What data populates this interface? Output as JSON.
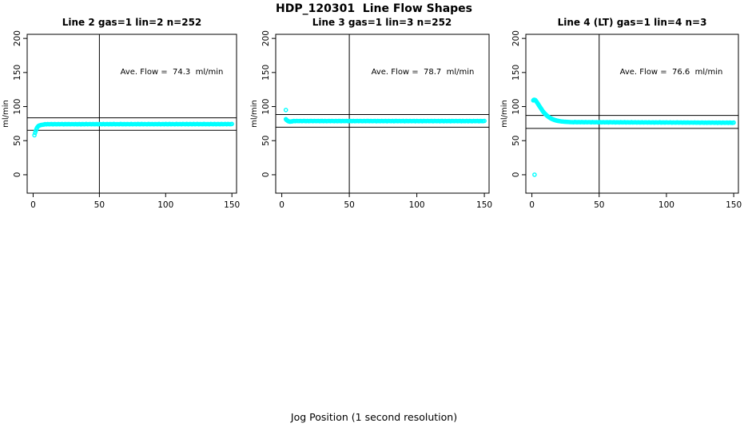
{
  "title": "HDP_120301  Line Flow Shapes",
  "xlabel": "Jog Position (1 second resolution)",
  "colors": {
    "points": "#00FFFF",
    "axis": "#000000",
    "background": "#FFFFFF"
  },
  "axes": {
    "xticks": [
      0,
      50,
      100,
      150
    ],
    "yticks": [
      0,
      50,
      100,
      150,
      200
    ],
    "ylabel": "ml/min",
    "xlim": [
      -4.5,
      153.5
    ],
    "ylim": [
      -27,
      206
    ],
    "grid": false
  },
  "chart_data": [
    {
      "type": "scatter",
      "title": "Line 2 gas=1 lin=2 n=252",
      "annotation": "Ave. Flow =  74.3  ml/min",
      "ave_flow_ml_min": 74.3,
      "n": 252,
      "reference": {
        "vline_x": 50,
        "hlines": [
          65.2,
          83.5
        ]
      },
      "series": {
        "transient": [
          [
            1,
            58
          ],
          [
            1.5,
            61.5
          ],
          [
            2,
            64.5
          ],
          [
            2.5,
            67
          ],
          [
            3,
            69
          ],
          [
            3.5,
            70.5
          ],
          [
            4,
            71.5
          ],
          [
            4.5,
            72.1
          ],
          [
            5,
            72.5
          ],
          [
            6,
            73.0
          ],
          [
            7,
            73.3
          ],
          [
            8,
            73.6
          ]
        ],
        "steady": {
          "x_from": 9,
          "x_to": 150,
          "x_step": 1,
          "y_start": 74.2,
          "y_end": 74.3,
          "y_wobble": 0.4
        },
        "outliers": []
      }
    },
    {
      "type": "scatter",
      "title": "Line 3 gas=1 lin=3 n=252",
      "annotation": "Ave. Flow =  78.7  ml/min",
      "ave_flow_ml_min": 78.7,
      "n": 252,
      "reference": {
        "vline_x": 50,
        "hlines": [
          69.7,
          88.3
        ]
      },
      "series": {
        "transient": [
          [
            3,
            81.5
          ],
          [
            3.5,
            80.4
          ],
          [
            4,
            79.6
          ],
          [
            4.5,
            79.0
          ],
          [
            5,
            78.4
          ],
          [
            5.5,
            78.1
          ],
          [
            6,
            77.9
          ],
          [
            6.5,
            78.0
          ],
          [
            7,
            78.1
          ],
          [
            7.5,
            78.3
          ],
          [
            8,
            78.5
          ]
        ],
        "steady": {
          "x_from": 9,
          "x_to": 150,
          "x_step": 1,
          "y_start": 78.8,
          "y_end": 78.7,
          "y_wobble": 0.35
        },
        "outliers": [
          [
            3,
            95
          ]
        ]
      }
    },
    {
      "type": "scatter",
      "title": "Line 4 (LT) gas=1 lin=4 n=3",
      "annotation": "Ave. Flow =  76.6  ml/min",
      "ave_flow_ml_min": 76.6,
      "n": 3,
      "reference": {
        "vline_x": 50,
        "hlines": [
          68.0,
          87.0
        ]
      },
      "series": {
        "transient": [
          [
            1,
            109
          ],
          [
            1.5,
            110
          ],
          [
            2,
            110
          ],
          [
            2.5,
            109.5
          ],
          [
            3,
            108.5
          ],
          [
            3.5,
            107
          ],
          [
            4,
            105.5
          ],
          [
            4.5,
            104
          ],
          [
            5,
            102.5
          ],
          [
            5.5,
            101
          ],
          [
            6,
            99.5
          ],
          [
            6.5,
            98
          ],
          [
            7,
            96.5
          ],
          [
            7.5,
            95
          ],
          [
            8,
            93.5
          ],
          [
            8.5,
            92.3
          ],
          [
            9,
            91
          ],
          [
            9.5,
            90
          ],
          [
            10,
            89
          ],
          [
            10.5,
            88
          ],
          [
            11,
            87
          ],
          [
            11.5,
            86.2
          ],
          [
            12,
            85.5
          ],
          [
            12.5,
            84.7
          ],
          [
            13,
            84
          ],
          [
            13.5,
            83.4
          ],
          [
            14,
            82.8
          ],
          [
            14.5,
            82.3
          ],
          [
            15,
            81.8
          ],
          [
            15.5,
            81.4
          ],
          [
            16,
            81
          ],
          [
            16.5,
            80.6
          ],
          [
            17,
            80.3
          ],
          [
            17.5,
            80
          ],
          [
            18,
            79.7
          ],
          [
            18.5,
            79.4
          ],
          [
            19,
            79.2
          ],
          [
            19.5,
            79
          ],
          [
            20,
            78.8
          ],
          [
            21,
            78.5
          ],
          [
            22,
            78.2
          ],
          [
            23,
            78
          ],
          [
            24,
            77.8
          ],
          [
            25,
            77.65
          ],
          [
            26,
            77.5
          ],
          [
            27,
            77.4
          ],
          [
            28,
            77.3
          ],
          [
            29,
            77.25
          ]
        ],
        "steady": {
          "x_from": 30,
          "x_to": 150,
          "x_step": 1,
          "y_start": 77.2,
          "y_end": 76.3,
          "y_wobble": 0.35
        },
        "outliers": [
          [
            2,
            0
          ]
        ]
      }
    }
  ]
}
